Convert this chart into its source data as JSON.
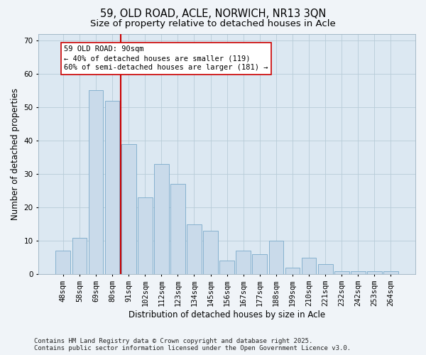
{
  "title_line1": "59, OLD ROAD, ACLE, NORWICH, NR13 3QN",
  "title_line2": "Size of property relative to detached houses in Acle",
  "xlabel": "Distribution of detached houses by size in Acle",
  "ylabel": "Number of detached properties",
  "categories": [
    "48sqm",
    "58sqm",
    "69sqm",
    "80sqm",
    "91sqm",
    "102sqm",
    "112sqm",
    "123sqm",
    "134sqm",
    "145sqm",
    "156sqm",
    "167sqm",
    "177sqm",
    "188sqm",
    "199sqm",
    "210sqm",
    "221sqm",
    "232sqm",
    "242sqm",
    "253sqm",
    "264sqm"
  ],
  "values": [
    7,
    11,
    55,
    52,
    39,
    23,
    33,
    27,
    15,
    13,
    4,
    7,
    6,
    10,
    2,
    5,
    3,
    1,
    1,
    1,
    1
  ],
  "bar_color": "#c9daea",
  "bar_edge_color": "#7aaaca",
  "vline_index": 4,
  "vline_color": "#cc0000",
  "annotation_line1": "59 OLD ROAD: 90sqm",
  "annotation_line2": "← 40% of detached houses are smaller (119)",
  "annotation_line3": "60% of semi-detached houses are larger (181) →",
  "annotation_box_facecolor": "#ffffff",
  "annotation_box_edgecolor": "#cc0000",
  "ylim_max": 72,
  "yticks": [
    0,
    10,
    20,
    30,
    40,
    50,
    60,
    70
  ],
  "grid_color": "#b8ccd8",
  "plot_bg": "#dce8f2",
  "fig_bg": "#f0f4f8",
  "footer_line1": "Contains HM Land Registry data © Crown copyright and database right 2025.",
  "footer_line2": "Contains public sector information licensed under the Open Government Licence v3.0.",
  "title1_fontsize": 10.5,
  "title2_fontsize": 9.5,
  "xlabel_fontsize": 8.5,
  "ylabel_fontsize": 8.5,
  "tick_fontsize": 7.5,
  "annot_fontsize": 7.5,
  "footer_fontsize": 6.5
}
